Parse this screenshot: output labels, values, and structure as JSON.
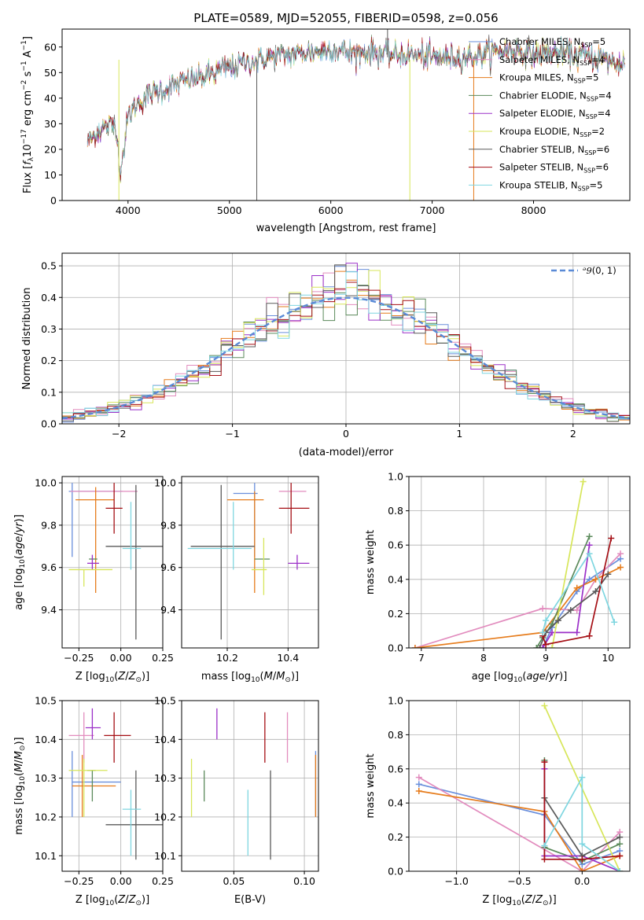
{
  "title": "PLATE=0589, MJD=52055, FIBERID=0598, z=0.056",
  "colors": {
    "c1": "#6a8fdc",
    "c2": "#e28cbe",
    "c3": "#e67c1c",
    "c4": "#5b8a5b",
    "c5": "#9b30c8",
    "c6": "#d7e65a",
    "c7": "#5a5a5a",
    "c8": "#a50f15",
    "c9": "#7fd6e0"
  },
  "series_names": [
    "Chabrier MILES, N_SSP=5",
    "Salpeter MILES, N_SSP=4",
    "Kroupa MILES, N_SSP=5",
    "Chabrier ELODIE, N_SSP=4",
    "Salpeter ELODIE, N_SSP=4",
    "Kroupa ELODIE, N_SSP=2",
    "Chabrier STELIB, N_SSP=6",
    "Salpeter STELIB, N_SSP=6",
    "Kroupa STELIB, N_SSP=5"
  ],
  "legend_entries": [
    {
      "pre": "Chabrier MILES, N",
      "sub": "SSP",
      "post": "=5"
    },
    {
      "pre": "Salpeter MILES, N",
      "sub": "SSP",
      "post": "=4"
    },
    {
      "pre": "Kroupa MILES, N",
      "sub": "SSP",
      "post": "=5"
    },
    {
      "pre": "Chabrier ELODIE, N",
      "sub": "SSP",
      "post": "=4"
    },
    {
      "pre": "Salpeter ELODIE, N",
      "sub": "SSP",
      "post": "=4"
    },
    {
      "pre": "Kroupa ELODIE, N",
      "sub": "SSP",
      "post": "=2"
    },
    {
      "pre": "Chabrier STELIB, N",
      "sub": "SSP",
      "post": "=6"
    },
    {
      "pre": "Salpeter STELIB, N",
      "sub": "SSP",
      "post": "=6"
    },
    {
      "pre": "Kroupa STELIB, N",
      "sub": "SSP",
      "post": "=5"
    }
  ],
  "chart_data": [
    {
      "id": "spectrum",
      "type": "line",
      "xlabel": "wavelength [Angstrom, rest frame]",
      "ylabel": "Flux [f_λ 10^-17 erg cm^-2 s^-1 A^-1]",
      "xlim": [
        3350,
        8950
      ],
      "ylim": [
        0,
        67
      ],
      "xticks": [
        4000,
        5000,
        6000,
        7000,
        8000
      ],
      "yticks": [
        0,
        10,
        20,
        30,
        40,
        50,
        60
      ],
      "wavelength_range": [
        3600,
        8900
      ],
      "continuum": [
        [
          3600,
          23
        ],
        [
          3700,
          27
        ],
        [
          3800,
          29
        ],
        [
          3880,
          30
        ],
        [
          3920,
          12
        ],
        [
          3960,
          20
        ],
        [
          4000,
          33
        ],
        [
          4100,
          38
        ],
        [
          4200,
          41
        ],
        [
          4300,
          43
        ],
        [
          4400,
          44
        ],
        [
          4600,
          47
        ],
        [
          4800,
          49
        ],
        [
          5000,
          52
        ],
        [
          5200,
          54
        ],
        [
          5400,
          56
        ],
        [
          5600,
          57
        ],
        [
          5800,
          58
        ],
        [
          6000,
          59
        ],
        [
          6200,
          58
        ],
        [
          6400,
          58
        ],
        [
          6560,
          57
        ],
        [
          6800,
          57
        ],
        [
          7000,
          56
        ],
        [
          7200,
          56
        ],
        [
          7400,
          56
        ],
        [
          7600,
          58
        ],
        [
          7800,
          59
        ],
        [
          8000,
          57
        ],
        [
          8200,
          58
        ],
        [
          8400,
          57
        ],
        [
          8600,
          56
        ],
        [
          8800,
          54
        ]
      ],
      "legend": "top-right",
      "grid": false
    },
    {
      "id": "residuals",
      "type": "histogram",
      "xlabel": "(data-model)/error",
      "ylabel": "Normed distribution",
      "xlim": [
        -2.5,
        2.5
      ],
      "ylim": [
        0,
        0.54
      ],
      "xticks": [
        -2,
        -1,
        0,
        1,
        2
      ],
      "yticks": [
        0.0,
        0.1,
        0.2,
        0.3,
        0.4,
        0.5
      ],
      "bins": 50,
      "reference_curve": "N(0,1)",
      "legend": "top-right",
      "grid": true
    },
    {
      "id": "age_vs_Z",
      "type": "errorbar",
      "xlabel": "Z [log10(Z/Z⊙)]",
      "ylabel": "age  [log10(age/yr)]",
      "xlim": [
        -0.35,
        0.25
      ],
      "ylim": [
        9.22,
        10.03
      ],
      "xticks": [
        -0.25,
        0.0,
        0.25
      ],
      "yticks": [
        9.4,
        9.6,
        9.8,
        10.0
      ],
      "points": [
        {
          "x": -0.29,
          "xerr": [
            0.02,
            0.3
          ],
          "y": 9.96,
          "yerr": [
            0.31,
            0.04
          ]
        },
        {
          "x": -0.25,
          "xerr": [
            0.05,
            0.35
          ],
          "y": 9.96,
          "yerr": [
            0.0,
            0.0
          ]
        },
        {
          "x": -0.15,
          "xerr": [
            0.12,
            0.11
          ],
          "y": 9.92,
          "yerr": [
            0.44,
            0.06
          ]
        },
        {
          "x": -0.17,
          "xerr": [
            0.02,
            0.03
          ],
          "y": 9.64,
          "yerr": [
            0.0,
            0.0
          ]
        },
        {
          "x": -0.17,
          "xerr": [
            0.03,
            0.04
          ],
          "y": 9.62,
          "yerr": [
            0.03,
            0.04
          ]
        },
        {
          "x": -0.22,
          "xerr": [
            0.09,
            0.17
          ],
          "y": 9.59,
          "yerr": [
            0.08,
            0.0
          ]
        },
        {
          "x": 0.09,
          "xerr": [
            0.18,
            0.2
          ],
          "y": 9.7,
          "yerr": [
            0.44,
            0.29
          ]
        },
        {
          "x": -0.04,
          "xerr": [
            0.05,
            0.05
          ],
          "y": 9.88,
          "yerr": [
            0.12,
            0.12
          ]
        },
        {
          "x": 0.06,
          "xerr": [
            0.05,
            0.06
          ],
          "y": 9.69,
          "yerr": [
            0.1,
            0.22
          ]
        }
      ]
    },
    {
      "id": "age_vs_mass",
      "type": "errorbar",
      "xlabel": "mass [log10(M/M⊙)]",
      "ylabel": "",
      "xlim": [
        10.05,
        10.5
      ],
      "ylim": [
        9.22,
        10.03
      ],
      "xticks": [
        10.2,
        10.4
      ],
      "yticks": [
        9.4,
        9.6,
        9.8,
        10.0
      ],
      "points": [
        {
          "x": 10.29,
          "xerr": [
            0.07,
            0.01
          ],
          "y": 9.95,
          "yerr": [
            0.3,
            0.05
          ]
        },
        {
          "x": 10.41,
          "xerr": [
            0.04,
            0.05
          ],
          "y": 9.96,
          "yerr": [
            0.0,
            0.0
          ]
        },
        {
          "x": 10.29,
          "xerr": [
            0.09,
            0.03
          ],
          "y": 9.92,
          "yerr": [
            0.44,
            0.04
          ]
        },
        {
          "x": 10.32,
          "xerr": [
            0.03,
            0.02
          ],
          "y": 9.64,
          "yerr": [
            0.0,
            0.0
          ]
        },
        {
          "x": 10.43,
          "xerr": [
            0.03,
            0.04
          ],
          "y": 9.62,
          "yerr": [
            0.03,
            0.04
          ]
        },
        {
          "x": 10.32,
          "xerr": [
            0.04,
            0.01
          ],
          "y": 9.59,
          "yerr": [
            0.12,
            0.15
          ]
        },
        {
          "x": 10.18,
          "xerr": [
            0.1,
            0.11
          ],
          "y": 9.7,
          "yerr": [
            0.44,
            0.29
          ]
        },
        {
          "x": 10.41,
          "xerr": [
            0.04,
            0.06
          ],
          "y": 9.88,
          "yerr": [
            0.12,
            0.12
          ]
        },
        {
          "x": 10.22,
          "xerr": [
            0.15,
            0.06
          ],
          "y": 9.69,
          "yerr": [
            0.1,
            0.22
          ]
        }
      ]
    },
    {
      "id": "massweight_vs_age",
      "type": "line",
      "xlabel": "age  [log10(age/yr)]",
      "ylabel": "mass weight",
      "xlim": [
        6.8,
        10.35
      ],
      "ylim": [
        0,
        1
      ],
      "xticks": [
        7,
        8,
        9,
        10
      ],
      "yticks": [
        0.0,
        0.2,
        0.4,
        0.6,
        0.8,
        1.0
      ],
      "series": [
        {
          "x": [
            8.95,
            9.1,
            9.5,
            9.7,
            10.2
          ],
          "y": [
            0.0,
            0.12,
            0.33,
            0.4,
            0.52
          ]
        },
        {
          "x": [
            6.9,
            8.95,
            9.5,
            9.8,
            10.2
          ],
          "y": [
            0.0,
            0.23,
            0.22,
            0.4,
            0.55
          ]
        },
        {
          "x": [
            6.9,
            8.95,
            9.5,
            9.8,
            10.2
          ],
          "y": [
            0.0,
            0.09,
            0.35,
            0.4,
            0.47
          ]
        },
        {
          "x": [
            8.85,
            8.95,
            9.1,
            9.7
          ],
          "y": [
            0.0,
            0.06,
            0.14,
            0.65
          ]
        },
        {
          "x": [
            8.95,
            9.1,
            9.5,
            9.7
          ],
          "y": [
            0.0,
            0.09,
            0.09,
            0.6
          ]
        },
        {
          "x": [
            9.1,
            9.6
          ],
          "y": [
            0.0,
            0.97
          ]
        },
        {
          "x": [
            8.9,
            9.0,
            9.2,
            9.4,
            9.8,
            10.0
          ],
          "y": [
            0.0,
            0.09,
            0.16,
            0.22,
            0.33,
            0.43
          ]
        },
        {
          "x": [
            8.95,
            9.0,
            9.7,
            10.05
          ],
          "y": [
            0.07,
            0.02,
            0.07,
            0.64
          ]
        },
        {
          "x": [
            8.95,
            9.0,
            9.7,
            10.1
          ],
          "y": [
            0.09,
            0.16,
            0.55,
            0.15
          ]
        }
      ]
    },
    {
      "id": "mass_vs_Z",
      "type": "errorbar",
      "xlabel": "Z [log10(Z/Z⊙)]",
      "ylabel": "mass [log10(M/M⊙)]",
      "xlim": [
        -0.35,
        0.25
      ],
      "ylim": [
        10.06,
        10.5
      ],
      "xticks": [
        -0.25,
        0.0,
        0.25
      ],
      "yticks": [
        10.1,
        10.2,
        10.3,
        10.4,
        10.5
      ],
      "points": [
        {
          "x": -0.29,
          "xerr": [
            0.0,
            0.29
          ],
          "y": 10.29,
          "yerr": [
            0.09,
            0.08
          ]
        },
        {
          "x": -0.22,
          "xerr": [
            0.09,
            0.06
          ],
          "y": 10.41,
          "yerr": [
            0.07,
            0.06
          ]
        },
        {
          "x": -0.23,
          "xerr": [
            0.06,
            0.2
          ],
          "y": 10.28,
          "yerr": [
            0.08,
            0.08
          ]
        },
        {
          "x": -0.17,
          "xerr": [
            0.03,
            0.02
          ],
          "y": 10.32,
          "yerr": [
            0.08,
            0.0
          ]
        },
        {
          "x": -0.17,
          "xerr": [
            0.04,
            0.05
          ],
          "y": 10.43,
          "yerr": [
            0.03,
            0.05
          ]
        },
        {
          "x": -0.22,
          "xerr": [
            0.09,
            0.14
          ],
          "y": 10.32,
          "yerr": [
            0.12,
            0.03
          ]
        },
        {
          "x": 0.09,
          "xerr": [
            0.18,
            0.19
          ],
          "y": 10.18,
          "yerr": [
            0.09,
            0.14
          ]
        },
        {
          "x": -0.04,
          "xerr": [
            0.06,
            0.1
          ],
          "y": 10.41,
          "yerr": [
            0.07,
            0.06
          ]
        },
        {
          "x": 0.06,
          "xerr": [
            0.05,
            0.06
          ],
          "y": 10.22,
          "yerr": [
            0.12,
            0.05
          ]
        }
      ]
    },
    {
      "id": "mass_vs_ebv",
      "type": "errorbar",
      "xlabel": "E(B-V)",
      "ylabel": "",
      "xlim": [
        0.013,
        0.11
      ],
      "ylim": [
        10.06,
        10.5
      ],
      "xticks": [
        0.05,
        0.1
      ],
      "yticks": [
        10.1,
        10.2,
        10.3,
        10.4,
        10.5
      ],
      "points": [
        {
          "x": 0.108,
          "y": 10.29,
          "yerr": [
            0.09,
            0.08
          ]
        },
        {
          "x": 0.088,
          "y": 10.41,
          "yerr": [
            0.07,
            0.06
          ]
        },
        {
          "x": 0.108,
          "y": 10.28,
          "yerr": [
            0.08,
            0.08
          ]
        },
        {
          "x": 0.029,
          "y": 10.32,
          "yerr": [
            0.08,
            0.0
          ]
        },
        {
          "x": 0.038,
          "y": 10.43,
          "yerr": [
            0.03,
            0.05
          ]
        },
        {
          "x": 0.02,
          "y": 10.32,
          "yerr": [
            0.12,
            0.03
          ]
        },
        {
          "x": 0.076,
          "y": 10.18,
          "yerr": [
            0.09,
            0.14
          ]
        },
        {
          "x": 0.072,
          "y": 10.41,
          "yerr": [
            0.07,
            0.06
          ]
        },
        {
          "x": 0.06,
          "y": 10.22,
          "yerr": [
            0.12,
            0.05
          ]
        }
      ]
    },
    {
      "id": "massweight_vs_Z",
      "type": "line",
      "xlabel": "Z [log10(Z/Z⊙)]",
      "ylabel": "mass weight",
      "xlim": [
        -1.38,
        0.38
      ],
      "ylim": [
        0,
        1
      ],
      "xticks": [
        -1.0,
        -0.5,
        0.0
      ],
      "yticks": [
        0.0,
        0.2,
        0.4,
        0.6,
        0.8,
        1.0
      ],
      "series": [
        {
          "x": [
            -1.3,
            -0.3,
            0.0,
            0.3
          ],
          "y": [
            0.51,
            0.33,
            0.04,
            0.12
          ]
        },
        {
          "x": [
            -1.3,
            0.0,
            0.3
          ],
          "y": [
            0.55,
            0.0,
            0.23
          ]
        },
        {
          "x": [
            -1.3,
            -0.3,
            0.0,
            0.3
          ],
          "y": [
            0.47,
            0.35,
            0.0,
            0.09
          ]
        },
        {
          "x": [
            -0.3,
            -0.3,
            0.0,
            0.3
          ],
          "y": [
            0.65,
            0.14,
            0.06,
            0.16
          ]
        },
        {
          "x": [
            -0.3,
            -0.3,
            0.0,
            0.3
          ],
          "y": [
            0.6,
            0.09,
            0.09,
            0.0
          ]
        },
        {
          "x": [
            -0.3,
            0.3
          ],
          "y": [
            0.97,
            0.0
          ]
        },
        {
          "x": [
            -0.3,
            0.0,
            0.3
          ],
          "y": [
            0.43,
            0.09,
            0.2
          ]
        },
        {
          "x": [
            -0.3,
            -0.3,
            0.0,
            0.3
          ],
          "y": [
            0.64,
            0.07,
            0.07,
            0.09
          ]
        },
        {
          "x": [
            -0.3,
            0.0,
            0.0,
            0.3
          ],
          "y": [
            0.15,
            0.55,
            0.16,
            0.0
          ]
        }
      ]
    }
  ]
}
